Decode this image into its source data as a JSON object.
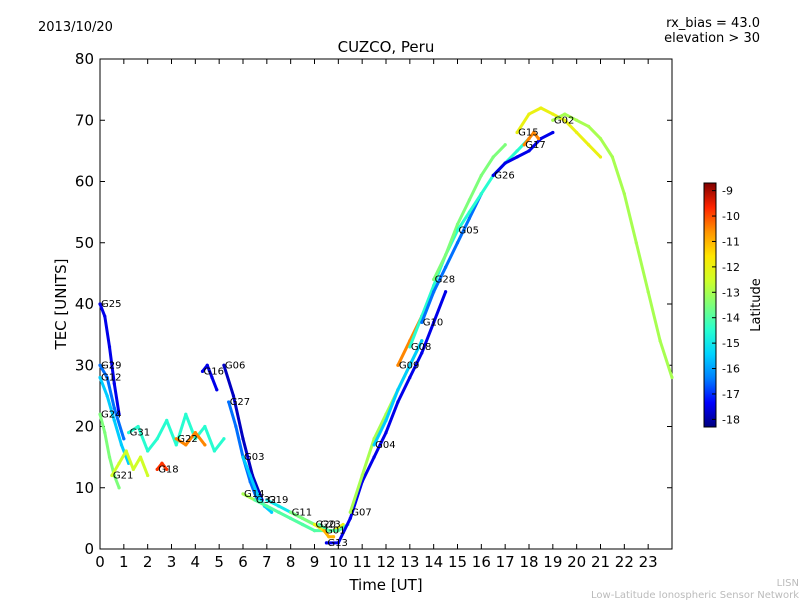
{
  "header": {
    "date": "2013/10/20",
    "rx_bias": "rx_bias = 43.0",
    "elevation": "elevation > 30"
  },
  "footer": {
    "org_short": "LISN",
    "org_long": "Low-Latitude Ionospheric Sensor Network"
  },
  "colorbar": {
    "label": "Latitude",
    "ticks": [
      "-9",
      "-10",
      "-11",
      "-12",
      "-13",
      "-14",
      "-15",
      "-16",
      "-17",
      "-18"
    ],
    "range": [
      -18.3,
      -8.7
    ],
    "colors": [
      "#00007f",
      "#0000ff",
      "#0080ff",
      "#00d4ff",
      "#29ffce",
      "#7dff7a",
      "#ceff29",
      "#ffe600",
      "#ff9400",
      "#ff2400",
      "#7f0000"
    ]
  },
  "chart_data": {
    "type": "scatter",
    "title": "CUZCO, Peru",
    "xlabel": "Time [UT]",
    "ylabel": "TEC [UNITS]",
    "xlim": [
      0,
      24
    ],
    "ylim": [
      0,
      80
    ],
    "xticks": [
      "0",
      "1",
      "2",
      "3",
      "4",
      "5",
      "6",
      "7",
      "8",
      "9",
      "10",
      "11",
      "12",
      "13",
      "14",
      "15",
      "16",
      "17",
      "18",
      "19",
      "20",
      "21",
      "22",
      "23"
    ],
    "yticks": [
      "0",
      "10",
      "20",
      "30",
      "40",
      "50",
      "60",
      "70",
      "80"
    ],
    "series": [
      {
        "name": "G25",
        "lat": -17.5,
        "x": [
          0.0,
          0.2,
          0.4,
          0.6,
          0.8
        ],
        "y": [
          40,
          38,
          33,
          27,
          22
        ]
      },
      {
        "name": "G29",
        "lat": -16.5,
        "x": [
          0.0,
          0.3,
          0.6,
          1.0
        ],
        "y": [
          30,
          28,
          23,
          18
        ]
      },
      {
        "name": "G12",
        "lat": -15.5,
        "x": [
          0.0,
          0.3,
          0.6,
          0.9,
          1.2
        ],
        "y": [
          28,
          25,
          21,
          17,
          14
        ]
      },
      {
        "name": "G24",
        "lat": -13.5,
        "x": [
          0.0,
          0.2,
          0.4,
          0.6,
          0.8
        ],
        "y": [
          22,
          19,
          15,
          12,
          10
        ]
      },
      {
        "name": "G21",
        "lat": -12.5,
        "x": [
          0.5,
          0.8,
          1.1,
          1.4,
          1.7,
          2.0
        ],
        "y": [
          12,
          14,
          16,
          13,
          15,
          12
        ]
      },
      {
        "name": "G31",
        "lat": -14.5,
        "x": [
          1.2,
          1.6,
          2.0,
          2.4,
          2.8,
          3.2,
          3.6,
          4.0,
          4.4,
          4.8,
          5.2
        ],
        "y": [
          19,
          20,
          16,
          18,
          21,
          17,
          22,
          18,
          20,
          16,
          18
        ]
      },
      {
        "name": "G22",
        "lat": -10.5,
        "x": [
          3.2,
          3.6,
          4.0,
          4.4
        ],
        "y": [
          18,
          17,
          19,
          17
        ]
      },
      {
        "name": "G18",
        "lat": -9.8,
        "x": [
          2.4,
          2.6,
          2.8
        ],
        "y": [
          13,
          14,
          13
        ]
      },
      {
        "name": "G16",
        "lat": -17.5,
        "x": [
          4.3,
          4.5,
          4.7,
          4.9
        ],
        "y": [
          29,
          30,
          28,
          26
        ]
      },
      {
        "name": "G06",
        "lat": -17.8,
        "x": [
          5.2,
          5.6,
          6.0,
          6.4,
          6.8
        ],
        "y": [
          30,
          25,
          18,
          12,
          8
        ]
      },
      {
        "name": "G27",
        "lat": -16.5,
        "x": [
          5.4,
          5.7,
          6.0,
          6.3,
          6.6
        ],
        "y": [
          24,
          20,
          15,
          11,
          8
        ]
      },
      {
        "name": "G03",
        "lat": -15.5,
        "x": [
          6.0,
          6.3,
          6.6,
          6.9,
          7.2
        ],
        "y": [
          15,
          12,
          9,
          7,
          6
        ]
      },
      {
        "name": "G14",
        "lat": -13.0,
        "x": [
          6.0,
          6.5,
          7.0,
          7.5,
          8.0,
          8.5,
          9.0
        ],
        "y": [
          9,
          8,
          7,
          6,
          5,
          4,
          3
        ]
      },
      {
        "name": "G32",
        "lat": -14.0,
        "x": [
          6.5,
          7.0,
          7.5,
          8.0,
          8.5,
          9.0,
          9.5
        ],
        "y": [
          8,
          7,
          6,
          5,
          4,
          3,
          3
        ]
      },
      {
        "name": "G19",
        "lat": -15.0,
        "x": [
          7.0,
          7.5,
          8.0,
          8.5,
          9.0
        ],
        "y": [
          8,
          7,
          6,
          5,
          4
        ]
      },
      {
        "name": "G11",
        "lat": -13.5,
        "x": [
          8.0,
          8.5,
          9.0,
          9.5,
          10.0
        ],
        "y": [
          6,
          5,
          4,
          3,
          3
        ]
      },
      {
        "name": "G20",
        "lat": -12.0,
        "x": [
          9.0,
          9.4,
          9.8,
          10.2
        ],
        "y": [
          4,
          3,
          3,
          4
        ]
      },
      {
        "name": "G23",
        "lat": -14.0,
        "x": [
          9.2,
          9.6,
          10.0,
          10.4
        ],
        "y": [
          4,
          3,
          3,
          4
        ]
      },
      {
        "name": "G01",
        "lat": -11.0,
        "x": [
          9.4,
          9.6,
          9.8
        ],
        "y": [
          3,
          2,
          2
        ]
      },
      {
        "name": "G13",
        "lat": -17.5,
        "x": [
          9.5,
          10.0,
          10.5,
          11.0,
          11.5,
          12.0,
          12.5,
          13.0,
          13.5,
          14.0,
          14.5
        ],
        "y": [
          1,
          1,
          5,
          11,
          15,
          19,
          24,
          28,
          32,
          37,
          42
        ]
      },
      {
        "name": "G07",
        "lat": -13.0,
        "x": [
          10.5,
          11.0,
          11.5,
          12.0,
          12.5,
          13.0,
          13.5
        ],
        "y": [
          6,
          12,
          18,
          22,
          26,
          30,
          34
        ]
      },
      {
        "name": "G04",
        "lat": -15.5,
        "x": [
          11.5,
          12.0,
          12.5,
          13.0,
          13.5
        ],
        "y": [
          17,
          21,
          26,
          30,
          34
        ]
      },
      {
        "name": "G09",
        "lat": -10.5,
        "x": [
          12.5,
          13.0,
          13.5,
          14.0
        ],
        "y": [
          30,
          34,
          38,
          42
        ]
      },
      {
        "name": "G08",
        "lat": -14.5,
        "x": [
          13.0,
          13.5,
          14.0,
          14.5,
          15.0
        ],
        "y": [
          33,
          38,
          43,
          48,
          52
        ]
      },
      {
        "name": "G10",
        "lat": -16.5,
        "x": [
          13.5,
          14.0,
          14.5,
          15.0,
          15.5,
          16.0
        ],
        "y": [
          37,
          42,
          46,
          50,
          54,
          58
        ]
      },
      {
        "name": "G28",
        "lat": -13.5,
        "x": [
          14.0,
          14.5,
          15.0,
          15.5,
          16.0,
          16.5,
          17.0
        ],
        "y": [
          44,
          48,
          53,
          57,
          61,
          64,
          66
        ]
      },
      {
        "name": "G05",
        "lat": -14.5,
        "x": [
          15.0,
          15.5,
          16.0,
          16.5,
          17.0,
          17.5,
          18.0
        ],
        "y": [
          52,
          55,
          58,
          61,
          63,
          65,
          67
        ]
      },
      {
        "name": "G26",
        "lat": -17.5,
        "x": [
          16.5,
          17.0,
          17.5,
          18.0,
          18.5,
          19.0
        ],
        "y": [
          61,
          63,
          64,
          65,
          67,
          68
        ]
      },
      {
        "name": "G17",
        "lat": -10.5,
        "x": [
          17.8,
          18.0,
          18.2,
          18.4
        ],
        "y": [
          66,
          67,
          68,
          67
        ]
      },
      {
        "name": "G15",
        "lat": -12.0,
        "x": [
          17.5,
          18.0,
          18.5,
          19.0,
          19.5,
          20.0,
          20.5,
          21.0
        ],
        "y": [
          68,
          71,
          72,
          71,
          70,
          68,
          66,
          64
        ]
      },
      {
        "name": "G02",
        "lat": -13.0,
        "x": [
          19.0,
          19.5,
          20.0,
          20.5,
          21.0,
          21.5,
          22.0,
          22.5,
          23.0,
          23.5,
          24.0
        ],
        "y": [
          70,
          71,
          70,
          69,
          67,
          64,
          58,
          50,
          42,
          34,
          28
        ]
      }
    ]
  }
}
